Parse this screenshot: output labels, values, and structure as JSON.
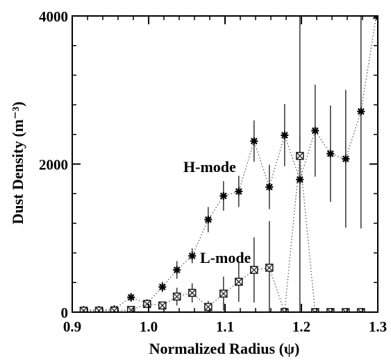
{
  "chart_data": {
    "type": "scatter",
    "title": "",
    "xlabel": "Normalized Radius (ψ)",
    "ylabel": "Dust Density (m⁻³)",
    "xlim": [
      0.9,
      1.3
    ],
    "ylim": [
      0,
      4000
    ],
    "xticks": [
      "0.9",
      "1.0",
      "1.1",
      "1.2",
      "1.3"
    ],
    "yticks": [
      "0",
      "2000",
      "4000"
    ],
    "grid": false,
    "annotations": [
      "H-mode",
      "L-mode"
    ],
    "series": [
      {
        "name": "H-mode",
        "marker": "asterisk",
        "line": "dotted",
        "points": [
          {
            "x": 0.915,
            "y": 30,
            "err": 0
          },
          {
            "x": 0.935,
            "y": 30,
            "err": 0
          },
          {
            "x": 0.955,
            "y": 40,
            "err": 0
          },
          {
            "x": 0.977,
            "y": 200,
            "err": 60
          },
          {
            "x": 0.998,
            "y": 120,
            "err": 50
          },
          {
            "x": 1.018,
            "y": 340,
            "err": 70
          },
          {
            "x": 1.037,
            "y": 570,
            "err": 120
          },
          {
            "x": 1.057,
            "y": 760,
            "err": 100
          },
          {
            "x": 1.078,
            "y": 1250,
            "err": 170
          },
          {
            "x": 1.098,
            "y": 1570,
            "err": 200
          },
          {
            "x": 1.118,
            "y": 1630,
            "err": 210
          },
          {
            "x": 1.138,
            "y": 2310,
            "err": 280
          },
          {
            "x": 1.158,
            "y": 1690,
            "err": 300
          },
          {
            "x": 1.178,
            "y": 2390,
            "err": 420
          },
          {
            "x": 1.198,
            "y": 1790,
            "err": 600
          },
          {
            "x": 1.218,
            "y": 2450,
            "err": 620
          },
          {
            "x": 1.238,
            "y": 2140,
            "err": 650
          },
          {
            "x": 1.258,
            "y": 2070,
            "err": 930
          },
          {
            "x": 1.278,
            "y": 2710,
            "err": 1580
          },
          {
            "x": 1.298,
            "y": 4000,
            "err": 0
          }
        ]
      },
      {
        "name": "L-mode",
        "marker": "boxed-x",
        "line": "dotted",
        "points": [
          {
            "x": 0.915,
            "y": 20,
            "err": 0
          },
          {
            "x": 0.935,
            "y": 20,
            "err": 0
          },
          {
            "x": 0.955,
            "y": 20,
            "err": 0
          },
          {
            "x": 0.977,
            "y": 30,
            "err": 30
          },
          {
            "x": 0.998,
            "y": 110,
            "err": 40
          },
          {
            "x": 1.018,
            "y": 90,
            "err": 50
          },
          {
            "x": 1.037,
            "y": 210,
            "err": 120
          },
          {
            "x": 1.057,
            "y": 260,
            "err": 130
          },
          {
            "x": 1.078,
            "y": 70,
            "err": 80
          },
          {
            "x": 1.098,
            "y": 250,
            "err": 230
          },
          {
            "x": 1.118,
            "y": 410,
            "err": 270
          },
          {
            "x": 1.138,
            "y": 570,
            "err": 440
          },
          {
            "x": 1.158,
            "y": 600,
            "err": 630
          },
          {
            "x": 1.178,
            "y": 0,
            "err": 0
          },
          {
            "x": 1.198,
            "y": 2110,
            "err": 2200
          },
          {
            "x": 1.218,
            "y": 0,
            "err": 0
          },
          {
            "x": 1.238,
            "y": 0,
            "err": 0
          },
          {
            "x": 1.258,
            "y": 0,
            "err": 0
          },
          {
            "x": 1.278,
            "y": 0,
            "err": 0
          }
        ]
      }
    ]
  }
}
